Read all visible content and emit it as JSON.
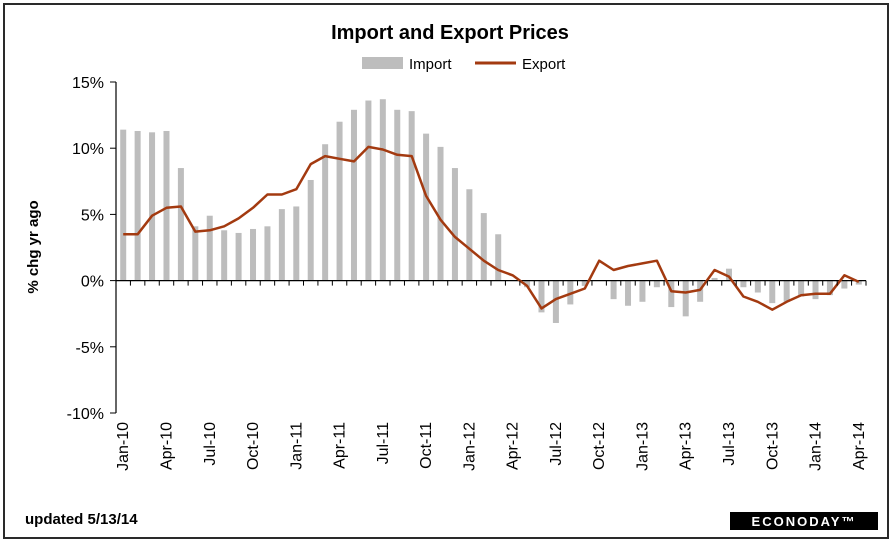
{
  "chart_data": {
    "type": "bar+line",
    "title": "Import and Export Prices",
    "ylabel": "% chg yr ago",
    "ylim": [
      -10,
      15
    ],
    "yticks": [
      "-10%",
      "-5%",
      "0%",
      "5%",
      "10%",
      "15%"
    ],
    "ytick_values": [
      -10,
      -5,
      0,
      5,
      10,
      15
    ],
    "x_tick_labels": [
      "Jan-10",
      "Apr-10",
      "Jul-10",
      "Oct-10",
      "Jan-11",
      "Apr-11",
      "Jul-11",
      "Oct-11",
      "Jan-12",
      "Apr-12",
      "Jul-12",
      "Oct-12",
      "Jan-13",
      "Apr-13",
      "Jul-13",
      "Oct-13",
      "Jan-14",
      "Apr-14"
    ],
    "legend": [
      "Import",
      "Export"
    ],
    "legend_placement": "top-center",
    "colors": {
      "import": "#bdbdbd",
      "export": "#a33a10"
    },
    "months": [
      "Jan-10",
      "Feb-10",
      "Mar-10",
      "Apr-10",
      "May-10",
      "Jun-10",
      "Jul-10",
      "Aug-10",
      "Sep-10",
      "Oct-10",
      "Nov-10",
      "Dec-10",
      "Jan-11",
      "Feb-11",
      "Mar-11",
      "Apr-11",
      "May-11",
      "Jun-11",
      "Jul-11",
      "Aug-11",
      "Sep-11",
      "Oct-11",
      "Nov-11",
      "Dec-11",
      "Jan-12",
      "Feb-12",
      "Mar-12",
      "Apr-12",
      "May-12",
      "Jun-12",
      "Jul-12",
      "Aug-12",
      "Sep-12",
      "Oct-12",
      "Nov-12",
      "Dec-12",
      "Jan-13",
      "Feb-13",
      "Mar-13",
      "Apr-13",
      "May-13",
      "Jun-13",
      "Jul-13",
      "Aug-13",
      "Sep-13",
      "Oct-13",
      "Nov-13",
      "Dec-13",
      "Jan-14",
      "Feb-14",
      "Mar-14",
      "Apr-14"
    ],
    "series": [
      {
        "name": "Import",
        "kind": "bar",
        "values": [
          11.4,
          11.3,
          11.2,
          11.3,
          8.5,
          4.1,
          4.9,
          3.8,
          3.6,
          3.9,
          4.1,
          5.4,
          5.6,
          7.6,
          10.3,
          12.0,
          12.9,
          13.6,
          13.7,
          12.9,
          12.8,
          11.1,
          10.1,
          8.5,
          6.9,
          5.1,
          3.5,
          0.0,
          -0.5,
          -2.4,
          -3.2,
          -1.8,
          -0.4,
          0.0,
          -1.4,
          -1.9,
          -1.6,
          -0.5,
          -2.0,
          -2.7,
          -1.6,
          0.2,
          0.9,
          -0.5,
          -0.9,
          -1.7,
          -1.6,
          -1.2,
          -1.4,
          -1.1,
          -0.6,
          -0.3
        ]
      },
      {
        "name": "Export",
        "kind": "line",
        "values": [
          3.5,
          3.5,
          4.9,
          5.5,
          5.6,
          3.7,
          3.8,
          4.1,
          4.7,
          5.5,
          6.5,
          6.5,
          6.9,
          8.8,
          9.4,
          9.2,
          9.0,
          10.1,
          9.9,
          9.5,
          9.4,
          6.4,
          4.6,
          3.3,
          2.4,
          1.5,
          0.8,
          0.4,
          -0.4,
          -2.1,
          -1.4,
          -1.0,
          -0.6,
          1.5,
          0.8,
          1.1,
          1.3,
          1.5,
          -0.8,
          -0.9,
          -0.7,
          0.8,
          0.3,
          -1.2,
          -1.6,
          -2.2,
          -1.6,
          -1.1,
          -1.0,
          -1.0,
          0.4,
          -0.1
        ]
      }
    ]
  },
  "footer": {
    "updated": "updated 5/13/14",
    "brand": "ECONODAY™"
  }
}
